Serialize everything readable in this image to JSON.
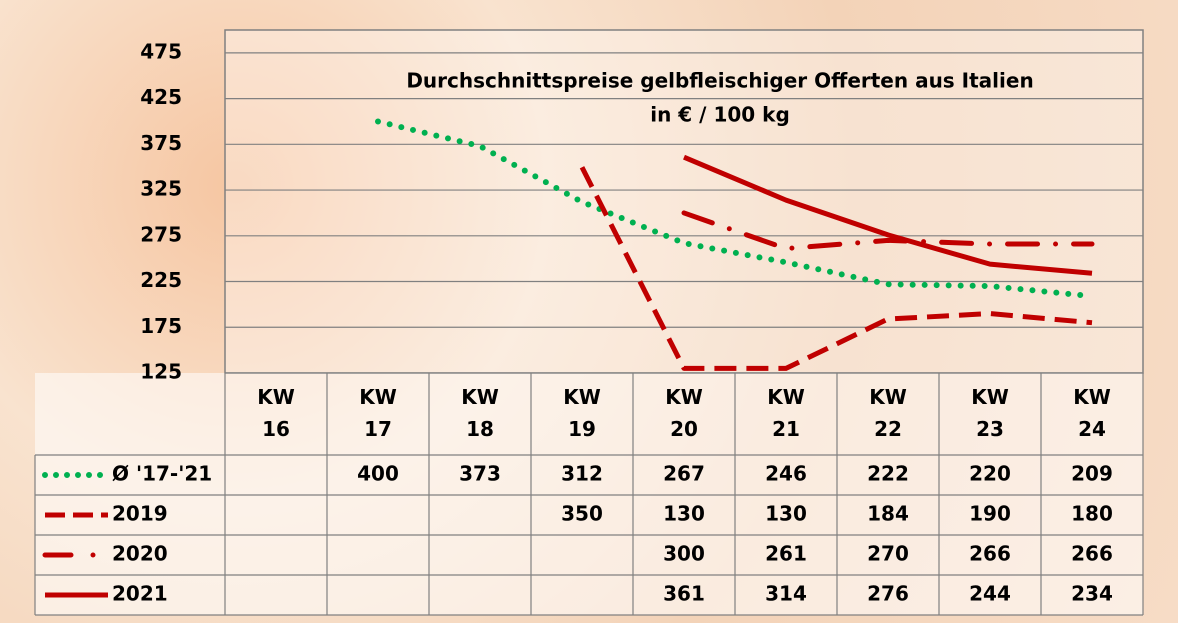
{
  "chart_data": {
    "type": "line",
    "title": "Durchschnittspreise gelbfleischiger Offerten aus Italien",
    "subtitle": "in € / 100 kg",
    "categories": [
      "KW 16",
      "KW 17",
      "KW 18",
      "KW 19",
      "KW 20",
      "KW 21",
      "KW 22",
      "KW 23",
      "KW 24"
    ],
    "series": [
      {
        "name": "Ø '17-'21",
        "color": "#00b050",
        "style": "dotted",
        "values": [
          null,
          400,
          373,
          312,
          267,
          246,
          222,
          220,
          209
        ]
      },
      {
        "name": "2019",
        "color": "#c00000",
        "style": "dashed",
        "values": [
          null,
          null,
          null,
          350,
          130,
          130,
          184,
          190,
          180
        ]
      },
      {
        "name": "2020",
        "color": "#c00000",
        "style": "dashdot",
        "values": [
          null,
          null,
          null,
          null,
          300,
          261,
          270,
          266,
          266
        ]
      },
      {
        "name": "2021",
        "color": "#c00000",
        "style": "solid",
        "values": [
          null,
          null,
          null,
          null,
          361,
          314,
          276,
          244,
          234
        ]
      }
    ],
    "ylim": [
      125,
      500
    ],
    "yticks": [
      125,
      175,
      225,
      275,
      325,
      375,
      425,
      475
    ],
    "grid": true
  }
}
